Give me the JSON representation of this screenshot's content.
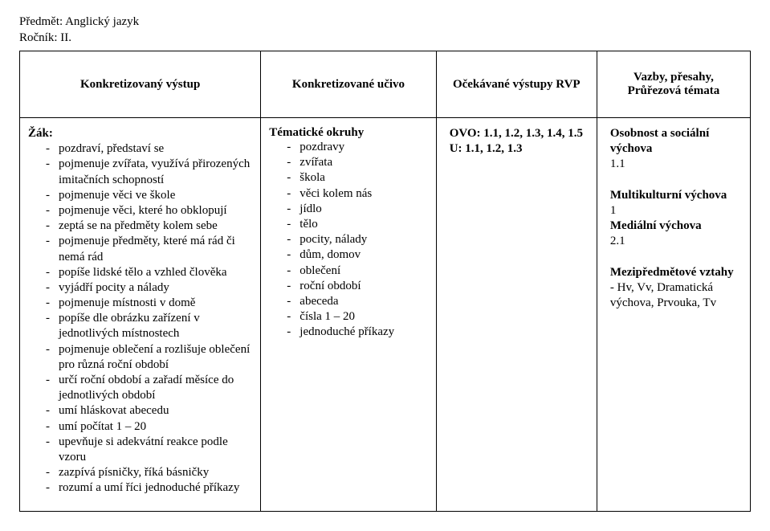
{
  "header": {
    "subject_line": "Předmět: Anglický jazyk",
    "grade_line": "Ročník: II."
  },
  "table": {
    "columns": [
      {
        "label": "Konkretizovaný výstup",
        "width": "33%"
      },
      {
        "label": "Konkretizované učivo",
        "width": "24%"
      },
      {
        "label": "Očekávané výstupy RVP",
        "width": "22%"
      },
      {
        "label_line1": "Vazby, přesahy,",
        "label_line2": "Průřezová témata",
        "width": "21%"
      }
    ],
    "col1": {
      "lead": "Žák:",
      "items": [
        "pozdraví, představí se",
        "pojmenuje zvířata, využívá přirozených imitačních schopností",
        "pojmenuje věci ve škole",
        "pojmenuje věci, které ho obklopují",
        "zeptá se na předměty kolem sebe",
        "pojmenuje předměty, které má rád či nemá rád",
        "popíše lidské tělo a vzhled člověka",
        "vyjádří pocity a nálady",
        "pojmenuje místnosti v domě",
        "popíše dle obrázku zařízení v jednotlivých místnostech",
        "pojmenuje oblečení a rozlišuje oblečení pro různá roční období",
        "určí roční období a zařadí měsíce do jednotlivých období",
        "umí hláskovat abecedu",
        "umí počítat 1 – 20",
        "upevňuje si adekvátní reakce podle vzoru",
        "zazpívá písničky, říká básničky",
        "rozumí a umí říci jednoduché příkazy"
      ]
    },
    "col2": {
      "lead": "Tématické okruhy",
      "items": [
        "pozdravy",
        "zvířata",
        "škola",
        "věci kolem nás",
        "jídlo",
        "tělo",
        "pocity, nálady",
        "dům, domov",
        "oblečení",
        "roční období",
        "abeceda",
        "čísla 1 – 20",
        "jednoduché příkazy"
      ]
    },
    "col3": {
      "lines": [
        "OVO: 1.1, 1.2, 1.3, 1.4, 1.5",
        "U: 1.1, 1.2, 1.3"
      ]
    },
    "col4": {
      "lines": [
        "Osobnost a sociální",
        "výchova",
        "1.1",
        "",
        "Multikulturní výchova",
        "1",
        "Mediální výchova",
        "2.1",
        "",
        "Mezipředmětové vztahy",
        " - Hv, Vv, Dramatická",
        "výchova, Prvouka, Tv"
      ],
      "bold_lines_idx": [
        0,
        1,
        4,
        6,
        9
      ]
    }
  },
  "style": {
    "font_family": "Times New Roman",
    "font_size_pt": 11,
    "text_color": "#000000",
    "bg_color": "#ffffff",
    "border_color": "#000000"
  }
}
